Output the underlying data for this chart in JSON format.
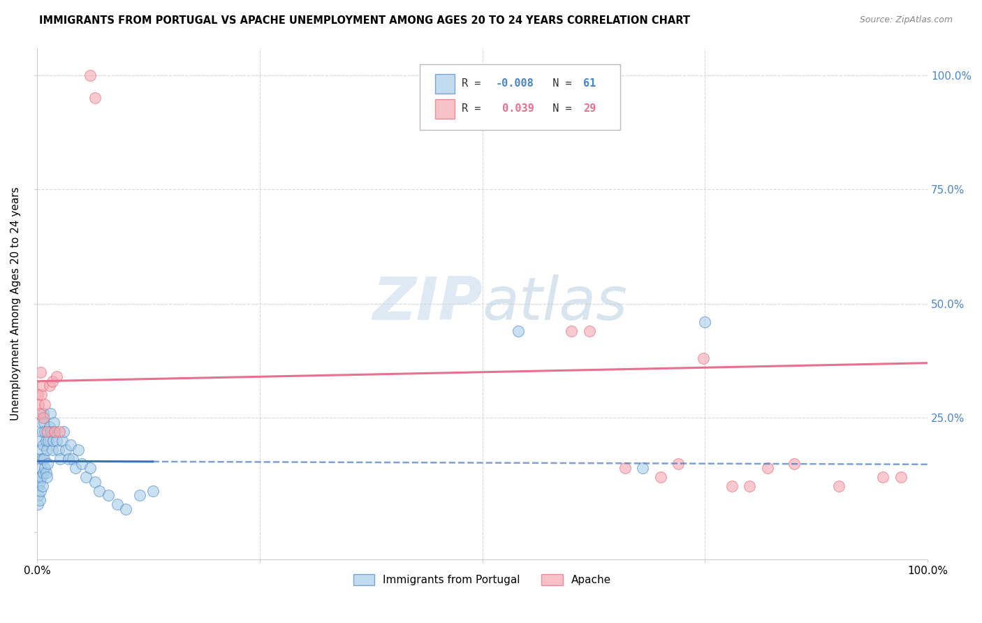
{
  "title": "IMMIGRANTS FROM PORTUGAL VS APACHE UNEMPLOYMENT AMONG AGES 20 TO 24 YEARS CORRELATION CHART",
  "source": "Source: ZipAtlas.com",
  "ylabel": "Unemployment Among Ages 20 to 24 years",
  "legend_label1": "Immigrants from Portugal",
  "legend_label2": "Apache",
  "R1": "-0.008",
  "N1": "61",
  "R2": "0.039",
  "N2": "29",
  "color_blue": "#a8cde8",
  "color_pink": "#f4a8b0",
  "color_blue_edge": "#4a86c8",
  "color_pink_edge": "#e86878",
  "color_blue_line": "#3a6fba",
  "color_pink_line": "#e87090",
  "xlim": [
    0.0,
    1.0
  ],
  "ylim": [
    -0.06,
    1.06
  ],
  "grid_color": "#d8d8d8",
  "watermark_color": "#c8dff0",
  "blue_x": [
    0.001,
    0.001,
    0.002,
    0.002,
    0.003,
    0.003,
    0.003,
    0.004,
    0.004,
    0.004,
    0.005,
    0.005,
    0.005,
    0.006,
    0.006,
    0.006,
    0.007,
    0.007,
    0.007,
    0.008,
    0.008,
    0.009,
    0.009,
    0.01,
    0.01,
    0.011,
    0.011,
    0.012,
    0.012,
    0.013,
    0.014,
    0.015,
    0.016,
    0.017,
    0.018,
    0.019,
    0.02,
    0.022,
    0.024,
    0.026,
    0.028,
    0.03,
    0.032,
    0.035,
    0.038,
    0.04,
    0.043,
    0.046,
    0.05,
    0.055,
    0.06,
    0.065,
    0.07,
    0.08,
    0.09,
    0.1,
    0.115,
    0.13,
    0.54,
    0.68,
    0.75
  ],
  "blue_y": [
    0.1,
    0.06,
    0.12,
    0.08,
    0.16,
    0.11,
    0.07,
    0.2,
    0.14,
    0.09,
    0.24,
    0.18,
    0.12,
    0.22,
    0.16,
    0.1,
    0.26,
    0.19,
    0.13,
    0.24,
    0.16,
    0.22,
    0.14,
    0.2,
    0.13,
    0.18,
    0.12,
    0.22,
    0.15,
    0.2,
    0.23,
    0.26,
    0.22,
    0.18,
    0.2,
    0.24,
    0.22,
    0.2,
    0.18,
    0.16,
    0.2,
    0.22,
    0.18,
    0.16,
    0.19,
    0.16,
    0.14,
    0.18,
    0.15,
    0.12,
    0.14,
    0.11,
    0.09,
    0.08,
    0.06,
    0.05,
    0.08,
    0.09,
    0.44,
    0.14,
    0.46
  ],
  "pink_x": [
    0.001,
    0.002,
    0.003,
    0.004,
    0.005,
    0.006,
    0.007,
    0.009,
    0.011,
    0.014,
    0.017,
    0.02,
    0.022,
    0.025,
    0.06,
    0.065,
    0.6,
    0.62,
    0.66,
    0.7,
    0.72,
    0.748,
    0.78,
    0.8,
    0.82,
    0.85,
    0.9,
    0.95,
    0.97
  ],
  "pink_y": [
    0.3,
    0.28,
    0.26,
    0.35,
    0.3,
    0.32,
    0.25,
    0.28,
    0.22,
    0.32,
    0.33,
    0.22,
    0.34,
    0.22,
    1.0,
    0.95,
    0.44,
    0.44,
    0.14,
    0.12,
    0.15,
    0.38,
    0.1,
    0.1,
    0.14,
    0.15,
    0.1,
    0.12,
    0.12
  ],
  "blue_line_solid_end": 0.13,
  "blue_line_start_y": 0.155,
  "blue_line_end_y": 0.148,
  "pink_line_start_y": 0.33,
  "pink_line_end_y": 0.37
}
